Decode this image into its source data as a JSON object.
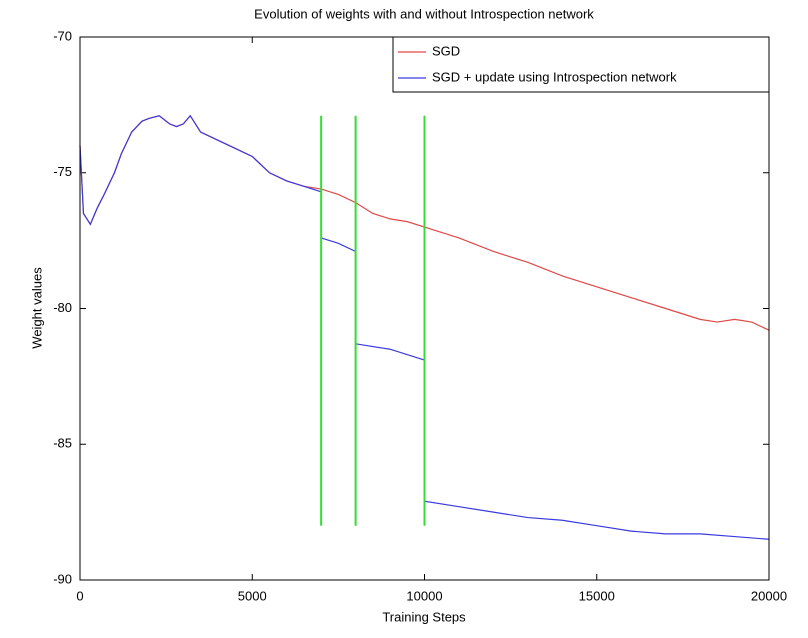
{
  "chart_data": {
    "type": "line",
    "title": "Evolution of weights with and without Introspection network",
    "x_label": "Training Steps",
    "y_label": "Weight values",
    "xlim": [
      0,
      20000
    ],
    "xticks": [
      0,
      5000,
      10000,
      15000,
      20000
    ],
    "ylim": [
      -90,
      -70
    ],
    "yticks": [
      -90,
      -85,
      -80,
      -75,
      -70
    ],
    "legend": "upper right",
    "series": [
      {
        "name": "SGD",
        "color": "#e04848",
        "x": [
          0,
          100,
          300,
          500,
          700,
          1000,
          1200,
          1500,
          1800,
          2000,
          2300,
          2600,
          2800,
          3000,
          3200,
          3500,
          4000,
          4500,
          5000,
          5500,
          6000,
          6500,
          7000,
          7500,
          8000,
          8500,
          9000,
          9500,
          10000,
          11000,
          12000,
          13000,
          14000,
          15000,
          16000,
          17000,
          18000,
          18500,
          19000,
          19500,
          20000
        ],
        "values": [
          -74,
          -76.5,
          -76.9,
          -76.3,
          -75.8,
          -75,
          -74.3,
          -73.5,
          -73.1,
          -73,
          -72.9,
          -73.2,
          -73.3,
          -73.2,
          -72.9,
          -73.5,
          -73.8,
          -74.1,
          -74.4,
          -75,
          -75.3,
          -75.5,
          -75.6,
          -75.8,
          -76.1,
          -76.5,
          -76.7,
          -76.8,
          -77,
          -77.4,
          -77.9,
          -78.3,
          -78.8,
          -79.2,
          -79.6,
          -80,
          -80.4,
          -80.5,
          -80.4,
          -80.5,
          -80.8
        ]
      },
      {
        "name": "SGD + update using Introspection network",
        "color": "#3a3ae0",
        "x": [
          0,
          100,
          300,
          500,
          700,
          1000,
          1200,
          1500,
          1800,
          2000,
          2300,
          2600,
          2800,
          3000,
          3200,
          3500,
          4000,
          4500,
          5000,
          5500,
          6000,
          6500,
          7000,
          7000,
          7500,
          8000,
          8000,
          9000,
          10000,
          10000,
          11000,
          12000,
          13000,
          14000,
          15000,
          16000,
          17000,
          18000,
          19000,
          20000
        ],
        "values": [
          -74,
          -76.5,
          -76.9,
          -76.3,
          -75.8,
          -75,
          -74.3,
          -73.5,
          -73.1,
          -73,
          -72.9,
          -73.2,
          -73.3,
          -73.2,
          -72.9,
          -73.5,
          -73.8,
          -74.1,
          -74.4,
          -75,
          -75.3,
          -75.5,
          -75.7,
          -77.4,
          -77.6,
          -77.9,
          -81.3,
          -81.5,
          -81.9,
          -87.1,
          -87.3,
          -87.5,
          -87.7,
          -87.8,
          -88,
          -88.2,
          -88.3,
          -88.3,
          -88.4,
          -88.5
        ]
      }
    ],
    "vlines": {
      "color": "#33dd33",
      "x": [
        7000,
        8000,
        10000
      ],
      "top": -72.9,
      "bottom": -88
    }
  }
}
